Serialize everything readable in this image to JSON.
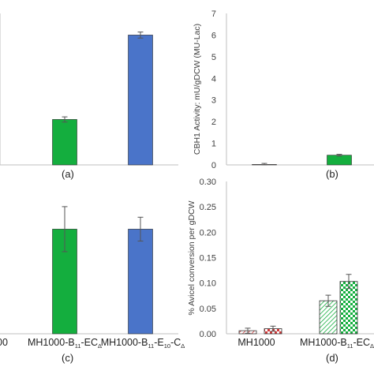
{
  "colors": {
    "green": "#14ae3e",
    "blue": "#4a74c9",
    "red": "#d23a3a",
    "axis": "#bfbfbf",
    "err": "#555555"
  },
  "chart_data": [
    {
      "panel": "a",
      "type": "bar",
      "panel_label": "(a)",
      "series": [
        {
          "bars": [
            {
              "value": 2.1,
              "err": 0.12,
              "color": "green"
            },
            {
              "value": 6.0,
              "err": 0.14,
              "color": "blue"
            }
          ]
        }
      ],
      "ylim": [
        0,
        7
      ]
    },
    {
      "panel": "b",
      "type": "bar",
      "panel_label": "(b)",
      "ylabel": "CBH1 Activity: mU/gDCW (MU-Lac)",
      "yticks": [
        "0",
        "1",
        "2",
        "3",
        "4",
        "5",
        "6",
        "7"
      ],
      "ylim": [
        0,
        7
      ],
      "series": [
        {
          "bars": [
            {
              "value": 0.02,
              "err": 0.05,
              "color": "red"
            },
            {
              "value": 0.45,
              "err": 0.04,
              "color": "green"
            }
          ]
        }
      ]
    },
    {
      "panel": "c",
      "type": "bar",
      "panel_label": "(c)",
      "categories": [
        {
          "prefix": "00"
        },
        {
          "prefix": "MH1000-B",
          "sub1": "11",
          "mid": "-EC",
          "sub2": "Δ"
        },
        {
          "prefix": "MH1000-B",
          "sub1": "11",
          "mid": "-E",
          "sub2": "10",
          "mid2": "-C",
          "sub3": "Δ"
        }
      ],
      "series": [
        {
          "bars": [
            {
              "value": 0.0,
              "err": 0.0,
              "color": "green"
            },
            {
              "value": 0.79,
              "err": 0.17,
              "color": "green"
            },
            {
              "value": 0.79,
              "err": 0.09,
              "color": "blue"
            }
          ]
        }
      ],
      "ylim": [
        0,
        1.15
      ]
    },
    {
      "panel": "d",
      "type": "bar",
      "panel_label": "(d)",
      "ylabel": "% Avicel conversion per gDCW",
      "yticks": [
        "0.00",
        "0.05",
        "0.10",
        "0.15",
        "0.20",
        "0.25",
        "0.30"
      ],
      "ylim": [
        0,
        0.3
      ],
      "categories": [
        {
          "prefix": "MH1000"
        },
        {
          "prefix": "MH1000-B",
          "sub1": "11",
          "mid": "-EC",
          "sub2": "Δ"
        }
      ],
      "series": [
        {
          "pattern": "hatch",
          "bars": [
            {
              "value": 0.006,
              "err": 0.005,
              "color": "red"
            },
            {
              "value": 0.065,
              "err": 0.011,
              "color": "green"
            }
          ]
        },
        {
          "pattern": "checker",
          "bars": [
            {
              "value": 0.01,
              "err": 0.005,
              "color": "red"
            },
            {
              "value": 0.103,
              "err": 0.014,
              "color": "green"
            }
          ]
        }
      ]
    }
  ]
}
